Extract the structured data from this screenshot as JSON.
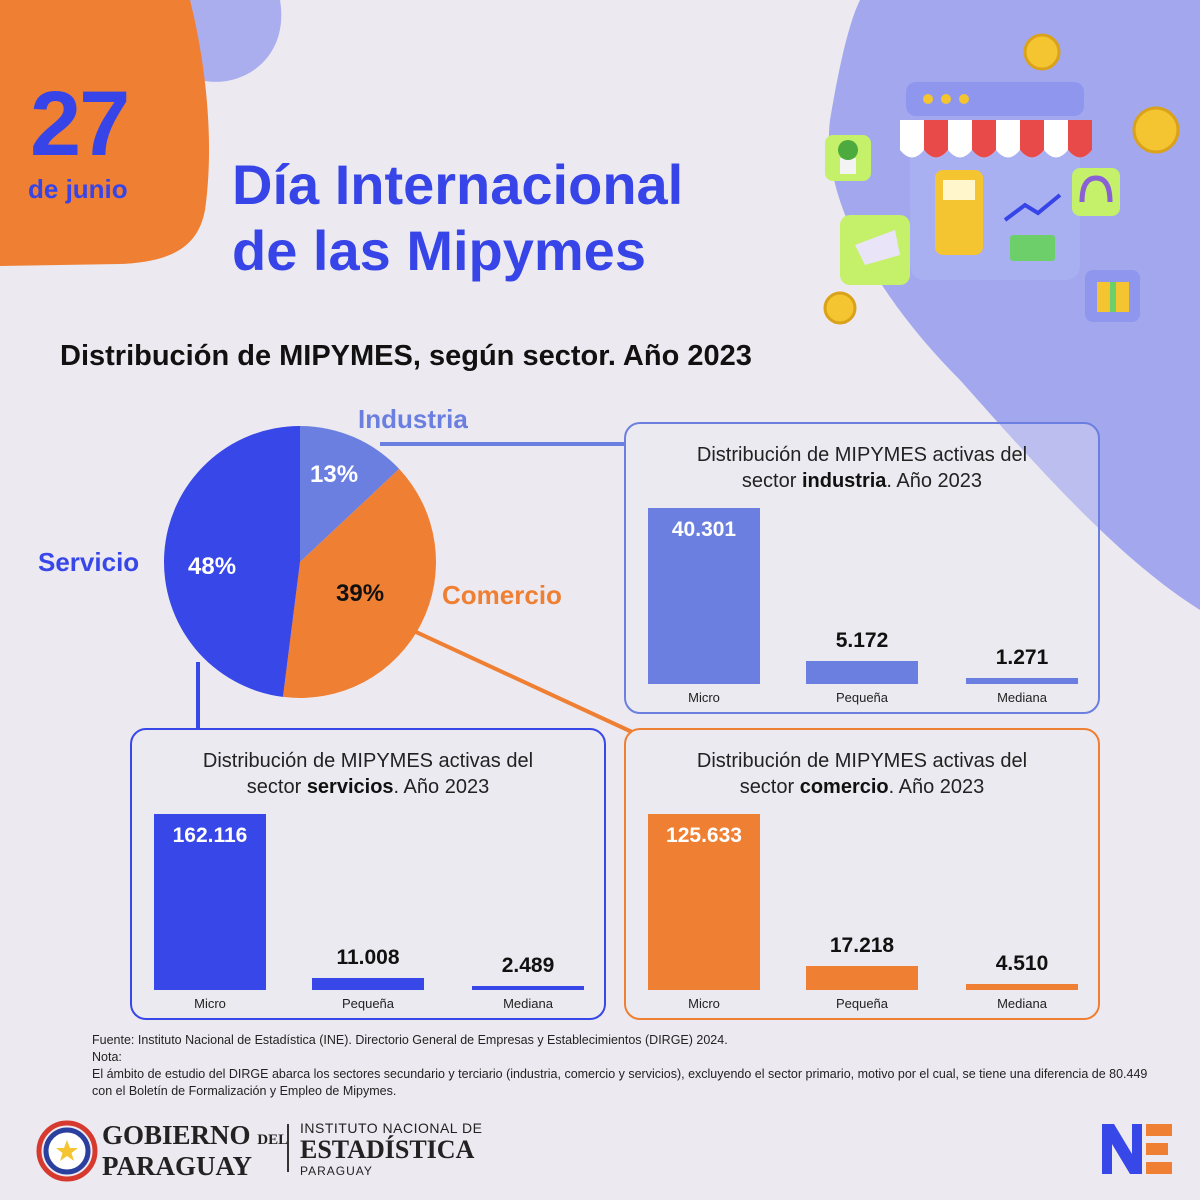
{
  "header": {
    "date_day": "27",
    "date_month": "de junio",
    "title_line1": "Día Internacional",
    "title_line2": "de las Mipymes"
  },
  "subtitle": "Distribución de MIPYMES, según sector. Año 2023",
  "colors": {
    "industria": "#6b7fe0",
    "comercio": "#ee7f33",
    "servicio": "#3847e8",
    "orange_bg": "#ee7f33",
    "lavender": "#a3a7ee"
  },
  "chart_data": [
    {
      "type": "pie",
      "title": "Distribución de MIPYMES, según sector. Año 2023",
      "slices": [
        {
          "label": "Industria",
          "value": 13,
          "display": "13%"
        },
        {
          "label": "Comercio",
          "value": 39,
          "display": "39%"
        },
        {
          "label": "Servicio",
          "value": 48,
          "display": "48%"
        }
      ]
    },
    {
      "type": "bar",
      "title_pre": "Distribución de MIPYMES activas del",
      "title_mid": "sector ",
      "title_bold": "industria",
      "title_post": ". Año 2023",
      "categories": [
        "Micro",
        "Pequeña",
        "Mediana"
      ],
      "values": [
        40301,
        5172,
        1271
      ],
      "labels": [
        "40.301",
        "5.172",
        "1.271"
      ]
    },
    {
      "type": "bar",
      "title_pre": "Distribución de MIPYMES activas del",
      "title_mid": "sector ",
      "title_bold": "servicios",
      "title_post": ". Año 2023",
      "categories": [
        "Micro",
        "Pequeña",
        "Mediana"
      ],
      "values": [
        162116,
        11008,
        2489
      ],
      "labels": [
        "162.116",
        "11.008",
        "2.489"
      ]
    },
    {
      "type": "bar",
      "title_pre": "Distribución de MIPYMES activas del",
      "title_mid": "sector ",
      "title_bold": "comercio",
      "title_post": ". Año 2023",
      "categories": [
        "Micro",
        "Pequeña",
        "Mediana"
      ],
      "values": [
        125633,
        17218,
        4510
      ],
      "labels": [
        "125.633",
        "17.218",
        "4.510"
      ]
    }
  ],
  "notes": {
    "source": "Fuente: Instituto Nacional de Estadística (INE). Directorio General de Empresas y Establecimientos (DIRGE) 2024.",
    "note_label": "Nota:",
    "note_text": "El ámbito de estudio del DIRGE abarca los sectores secundario y terciario (industria, comercio y servicios), excluyendo el sector primario, motivo por el cual, se tiene una diferencia de 80.449 con el Boletín de Formalización y Empleo de Mipymes."
  },
  "footer": {
    "gov_line1": "GOBIERNO",
    "gov_del": "DEL",
    "gov_line2": "PARAGUAY",
    "ine_line1": "INSTITUTO NACIONAL DE",
    "ine_line2": "ESTADÍSTICA",
    "ine_line3": "PARAGUAY"
  }
}
